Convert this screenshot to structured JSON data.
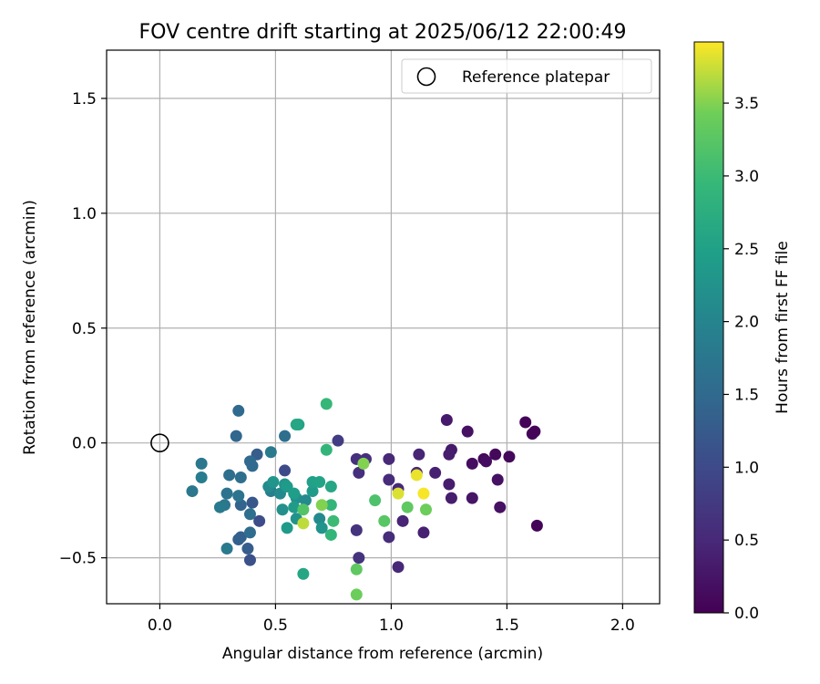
{
  "chart_data": {
    "type": "scatter",
    "title": "FOV centre drift starting at 2025/06/12 22:00:49",
    "xlabel": "Angular distance from reference (arcmin)",
    "ylabel": "Rotation from reference (arcmin)",
    "xlim": [
      -0.23,
      2.16
    ],
    "ylim": [
      -0.7,
      1.71
    ],
    "xticks": [
      0.0,
      0.5,
      1.0,
      1.5,
      2.0
    ],
    "xtick_labels": [
      "0.0",
      "0.5",
      "1.0",
      "1.5",
      "2.0"
    ],
    "yticks": [
      -0.5,
      0.0,
      0.5,
      1.0,
      1.5
    ],
    "ytick_labels": [
      "−0.5",
      "0.0",
      "0.5",
      "1.0",
      "1.5"
    ],
    "grid": true,
    "legend": {
      "position": "top-right",
      "entries": [
        "Reference platepar"
      ]
    },
    "reference_point": {
      "x": 0.0,
      "y": 0.0,
      "label": "Reference platepar"
    },
    "colorbar": {
      "label": "Hours from first FF file",
      "colormap": "viridis",
      "range": [
        0.0,
        3.92
      ],
      "ticks": [
        0.0,
        0.5,
        1.0,
        1.5,
        2.0,
        2.5,
        3.0,
        3.5
      ],
      "tick_labels": [
        "0.0",
        "0.5",
        "1.0",
        "1.5",
        "2.0",
        "2.5",
        "3.0",
        "3.5"
      ]
    },
    "points": [
      [
        1.62,
        0.05,
        0.05
      ],
      [
        1.61,
        0.04,
        0.05
      ],
      [
        1.58,
        0.09,
        0.05
      ],
      [
        1.63,
        -0.36,
        0.05
      ],
      [
        1.51,
        -0.06,
        0.1
      ],
      [
        1.45,
        -0.05,
        0.1
      ],
      [
        1.4,
        -0.07,
        0.1
      ],
      [
        1.35,
        -0.09,
        0.15
      ],
      [
        1.33,
        0.05,
        0.2
      ],
      [
        1.41,
        -0.08,
        0.15
      ],
      [
        1.46,
        -0.16,
        0.2
      ],
      [
        1.47,
        -0.28,
        0.2
      ],
      [
        1.35,
        -0.24,
        0.25
      ],
      [
        1.24,
        0.1,
        0.3
      ],
      [
        1.26,
        -0.03,
        0.3
      ],
      [
        1.25,
        -0.05,
        0.35
      ],
      [
        1.25,
        -0.18,
        0.35
      ],
      [
        1.26,
        -0.24,
        0.35
      ],
      [
        1.19,
        -0.13,
        0.4
      ],
      [
        1.14,
        -0.39,
        0.4
      ],
      [
        1.12,
        -0.05,
        0.45
      ],
      [
        1.11,
        -0.13,
        0.45
      ],
      [
        1.05,
        -0.34,
        0.45
      ],
      [
        1.03,
        -0.2,
        0.5
      ],
      [
        1.03,
        -0.54,
        0.5
      ],
      [
        0.99,
        -0.07,
        0.5
      ],
      [
        0.99,
        -0.16,
        0.55
      ],
      [
        0.99,
        -0.41,
        0.55
      ],
      [
        0.89,
        -0.07,
        0.6
      ],
      [
        0.86,
        -0.13,
        0.6
      ],
      [
        0.85,
        -0.07,
        0.6
      ],
      [
        0.85,
        -0.38,
        0.65
      ],
      [
        0.86,
        -0.5,
        0.65
      ],
      [
        0.77,
        0.01,
        0.8
      ],
      [
        0.54,
        -0.12,
        1.0
      ],
      [
        0.43,
        -0.34,
        1.05
      ],
      [
        0.39,
        -0.51,
        1.1
      ],
      [
        0.4,
        -0.26,
        1.2
      ],
      [
        0.42,
        -0.05,
        1.3
      ],
      [
        0.38,
        -0.46,
        1.3
      ],
      [
        0.34,
        -0.42,
        1.35
      ],
      [
        0.35,
        -0.41,
        1.35
      ],
      [
        0.35,
        -0.27,
        1.4
      ],
      [
        0.33,
        0.03,
        1.45
      ],
      [
        0.34,
        0.14,
        1.5
      ],
      [
        0.39,
        -0.08,
        1.5
      ],
      [
        0.4,
        -0.1,
        1.5
      ],
      [
        0.39,
        -0.39,
        1.55
      ],
      [
        0.35,
        -0.15,
        1.6
      ],
      [
        0.3,
        -0.14,
        1.6
      ],
      [
        0.39,
        -0.31,
        1.6
      ],
      [
        0.34,
        -0.23,
        1.7
      ],
      [
        0.29,
        -0.22,
        1.7
      ],
      [
        0.28,
        -0.27,
        1.75
      ],
      [
        0.26,
        -0.28,
        1.8
      ],
      [
        0.29,
        -0.46,
        1.8
      ],
      [
        0.14,
        -0.21,
        1.75
      ],
      [
        0.18,
        -0.09,
        1.75
      ],
      [
        0.18,
        -0.15,
        1.85
      ],
      [
        0.54,
        0.03,
        1.6
      ],
      [
        0.48,
        -0.04,
        1.8
      ],
      [
        0.48,
        -0.21,
        1.9
      ],
      [
        0.47,
        -0.19,
        2.1
      ],
      [
        0.52,
        -0.22,
        2.1
      ],
      [
        0.53,
        -0.29,
        2.2
      ],
      [
        0.49,
        -0.17,
        2.3
      ],
      [
        0.54,
        -0.18,
        2.3
      ],
      [
        0.55,
        -0.19,
        2.4
      ],
      [
        0.59,
        -0.24,
        2.2
      ],
      [
        0.59,
        -0.33,
        2.25
      ],
      [
        0.55,
        -0.37,
        2.4
      ],
      [
        0.58,
        -0.28,
        2.4
      ],
      [
        0.58,
        -0.22,
        2.45
      ],
      [
        0.6,
        0.08,
        2.55
      ],
      [
        0.59,
        0.08,
        2.6
      ],
      [
        0.63,
        -0.25,
        2.1
      ],
      [
        0.66,
        -0.21,
        2.4
      ],
      [
        0.66,
        -0.17,
        2.5
      ],
      [
        0.69,
        -0.17,
        2.55
      ],
      [
        0.69,
        -0.33,
        2.1
      ],
      [
        0.7,
        -0.37,
        2.3
      ],
      [
        0.74,
        -0.19,
        2.6
      ],
      [
        0.62,
        -0.57,
        2.6
      ],
      [
        0.74,
        -0.27,
        2.9
      ],
      [
        0.75,
        -0.34,
        3.0
      ],
      [
        0.74,
        -0.4,
        2.9
      ],
      [
        0.72,
        -0.03,
        2.9
      ],
      [
        0.72,
        0.17,
        2.95
      ],
      [
        0.62,
        -0.29,
        3.2
      ],
      [
        0.62,
        -0.35,
        3.7
      ],
      [
        0.7,
        -0.27,
        3.5
      ],
      [
        0.85,
        -0.55,
        3.3
      ],
      [
        0.85,
        -0.66,
        3.4
      ],
      [
        0.88,
        -0.09,
        3.5
      ],
      [
        0.93,
        -0.25,
        3.15
      ],
      [
        0.97,
        -0.34,
        3.25
      ],
      [
        1.07,
        -0.28,
        3.3
      ],
      [
        1.15,
        -0.29,
        3.4
      ],
      [
        1.03,
        -0.22,
        3.8
      ],
      [
        1.11,
        -0.14,
        3.85
      ],
      [
        1.14,
        -0.22,
        3.9
      ]
    ]
  }
}
